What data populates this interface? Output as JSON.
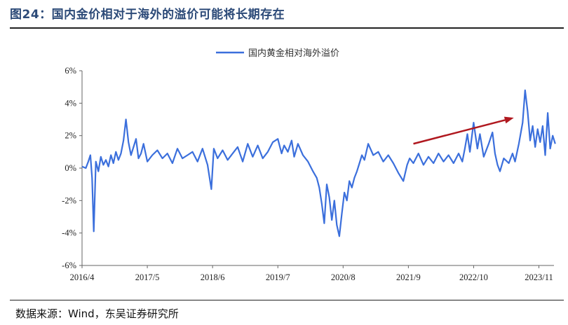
{
  "figure": {
    "title": "图24：国内金价相对于海外的溢价可能将长期存在",
    "source": "数据来源：Wind，东吴证券研究所"
  },
  "colors": {
    "series": "#3b6fdc",
    "arrow": "#b0181f",
    "title": "#2c4a78"
  },
  "chart_data": {
    "type": "line",
    "title": "",
    "xlabel": "",
    "ylabel": "",
    "ylim": [
      -6,
      6
    ],
    "yticks": [
      "6%",
      "4%",
      "2%",
      "0%",
      "-2%",
      "-4%",
      "-6%"
    ],
    "yunit": "%",
    "x_ticks": [
      "2016/4",
      "2017/5",
      "2018/6",
      "2019/7",
      "2020/8",
      "2021/9",
      "2022/10",
      "2023/11"
    ],
    "x_range": [
      "2016-04",
      "2024-02"
    ],
    "legend": {
      "position": "top-center",
      "entries": [
        "国内黄金相对海外溢价"
      ]
    },
    "grid": false,
    "annotations": [
      {
        "type": "arrow",
        "from": [
          "2021-10",
          1.5
        ],
        "to": [
          "2023-06",
          3.1
        ],
        "meaning": "rising trend"
      }
    ],
    "series": [
      {
        "name": "国内黄金相对海外溢价",
        "x": [
          "2016-04",
          "2016-05",
          "2016-05",
          "2016-06",
          "2016-06",
          "2016-06",
          "2016-07",
          "2016-07",
          "2016-08",
          "2016-08",
          "2016-09",
          "2016-09",
          "2016-10",
          "2016-10",
          "2016-11",
          "2016-11",
          "2016-12",
          "2016-12",
          "2017-01",
          "2017-01",
          "2017-02",
          "2017-02",
          "2017-03",
          "2017-03",
          "2017-04",
          "2017-04",
          "2017-05",
          "2017-06",
          "2017-07",
          "2017-08",
          "2017-09",
          "2017-10",
          "2017-11",
          "2017-12",
          "2018-01",
          "2018-02",
          "2018-03",
          "2018-04",
          "2018-05",
          "2018-06",
          "2018-06",
          "2018-07",
          "2018-08",
          "2018-09",
          "2018-10",
          "2018-11",
          "2018-12",
          "2019-01",
          "2019-02",
          "2019-03",
          "2019-04",
          "2019-05",
          "2019-06",
          "2019-07",
          "2019-08",
          "2019-08",
          "2019-09",
          "2019-10",
          "2019-10",
          "2019-11",
          "2019-12",
          "2020-01",
          "2020-02",
          "2020-03",
          "2020-03",
          "2020-04",
          "2020-04",
          "2020-05",
          "2020-05",
          "2020-06",
          "2020-06",
          "2020-07",
          "2020-07",
          "2020-08",
          "2020-08",
          "2020-09",
          "2020-09",
          "2020-10",
          "2020-10",
          "2020-11",
          "2020-11",
          "2020-12",
          "2020-12",
          "2021-01",
          "2021-02",
          "2021-03",
          "2021-04",
          "2021-05",
          "2021-06",
          "2021-07",
          "2021-08",
          "2021-09",
          "2021-09",
          "2021-10",
          "2021-11",
          "2021-12",
          "2022-01",
          "2022-02",
          "2022-03",
          "2022-04",
          "2022-05",
          "2022-06",
          "2022-07",
          "2022-08",
          "2022-08",
          "2022-09",
          "2022-09",
          "2022-10",
          "2022-11",
          "2022-11",
          "2022-12",
          "2023-01",
          "2023-02",
          "2023-02",
          "2023-03",
          "2023-03",
          "2023-04",
          "2023-05",
          "2023-06",
          "2023-06",
          "2023-07",
          "2023-08",
          "2023-08",
          "2023-09",
          "2023-09",
          "2023-10",
          "2023-10",
          "2023-11",
          "2023-11",
          "2023-12",
          "2023-12",
          "2024-01",
          "2024-01",
          "2024-02",
          "2024-02"
        ],
        "values": [
          0.1,
          0.0,
          0.4,
          0.8,
          -0.6,
          -3.9,
          0.4,
          -0.2,
          0.7,
          0.2,
          0.5,
          0.1,
          0.8,
          0.3,
          1.0,
          0.5,
          0.9,
          1.7,
          3.0,
          1.6,
          0.8,
          1.3,
          1.8,
          0.6,
          0.9,
          1.5,
          0.4,
          0.8,
          1.1,
          0.6,
          0.9,
          0.3,
          1.2,
          0.6,
          0.8,
          1.0,
          0.4,
          1.2,
          0.2,
          -1.3,
          1.2,
          0.6,
          1.1,
          0.5,
          0.9,
          1.3,
          0.4,
          1.5,
          0.7,
          1.4,
          0.6,
          1.0,
          1.6,
          1.8,
          0.9,
          1.4,
          1.0,
          1.7,
          0.7,
          1.5,
          0.8,
          0.4,
          -0.2,
          -0.6,
          -1.2,
          -2.2,
          -3.4,
          -1.0,
          -1.8,
          -3.2,
          -2.0,
          -3.5,
          -4.2,
          -2.8,
          -1.5,
          -2.0,
          -0.8,
          -1.2,
          -0.6,
          -0.2,
          0.3,
          0.8,
          0.5,
          1.5,
          0.8,
          1.0,
          0.4,
          0.8,
          0.3,
          -0.3,
          -0.8,
          0.2,
          0.6,
          0.3,
          0.9,
          0.2,
          0.7,
          0.3,
          0.9,
          0.4,
          0.8,
          0.3,
          0.9,
          0.4,
          1.2,
          2.1,
          1.0,
          2.8,
          1.2,
          2.1,
          0.7,
          1.5,
          2.2,
          0.9,
          0.2,
          -0.2,
          0.6,
          0.3,
          0.9,
          0.4,
          1.5,
          2.8,
          4.8,
          3.5,
          1.7,
          2.6,
          1.3,
          2.4,
          1.6,
          2.6,
          0.8,
          3.4,
          1.2,
          2.0,
          1.5
        ]
      }
    ]
  }
}
